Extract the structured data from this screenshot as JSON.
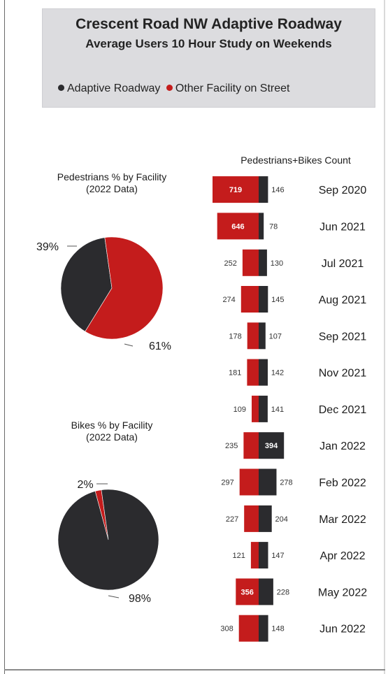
{
  "header": {
    "title": "Crescent Road NW Adaptive Roadway",
    "subtitle": "Average Users 10 Hour Study on Weekends"
  },
  "legend": [
    {
      "label": "Adaptive Roadway",
      "color": "#2b2b2e"
    },
    {
      "label": "Other Facility on Street",
      "color": "#c41c1c"
    }
  ],
  "chart_data": [
    {
      "type": "pie",
      "title": "Pedestrians % by Facility",
      "subtitle": "(2022 Data)",
      "slices": [
        {
          "label": "Adaptive Roadway",
          "value": 39,
          "display": "39%",
          "color": "#2b2b2e"
        },
        {
          "label": "Other Facility on Street",
          "value": 61,
          "display": "61%",
          "color": "#c41c1c"
        }
      ]
    },
    {
      "type": "pie",
      "title": "Bikes % by Facility",
      "subtitle": "(2022 Data)",
      "slices": [
        {
          "label": "Other Facility on Street",
          "value": 2,
          "display": "2%",
          "color": "#c41c1c"
        },
        {
          "label": "Adaptive Roadway",
          "value": 98,
          "display": "98%",
          "color": "#2b2b2e"
        }
      ]
    },
    {
      "type": "bar",
      "title": "Pedestrians+Bikes Count",
      "orientation": "horizontal-diverging",
      "categories": [
        "Sep 2020",
        "Jun 2021",
        "Jul 2021",
        "Aug 2021",
        "Sep 2021",
        "Nov 2021",
        "Dec 2021",
        "Jan 2022",
        "Feb 2022",
        "Mar 2022",
        "Apr 2022",
        "May 2022",
        "Jun 2022"
      ],
      "series": [
        {
          "name": "Other Facility on Street",
          "color": "#c41c1c",
          "values": [
            719,
            646,
            252,
            274,
            178,
            181,
            109,
            235,
            297,
            227,
            121,
            356,
            308
          ]
        },
        {
          "name": "Adaptive Roadway",
          "color": "#2b2b2e",
          "values": [
            146,
            78,
            130,
            145,
            107,
            142,
            141,
            394,
            278,
            204,
            147,
            228,
            148
          ]
        }
      ]
    }
  ]
}
